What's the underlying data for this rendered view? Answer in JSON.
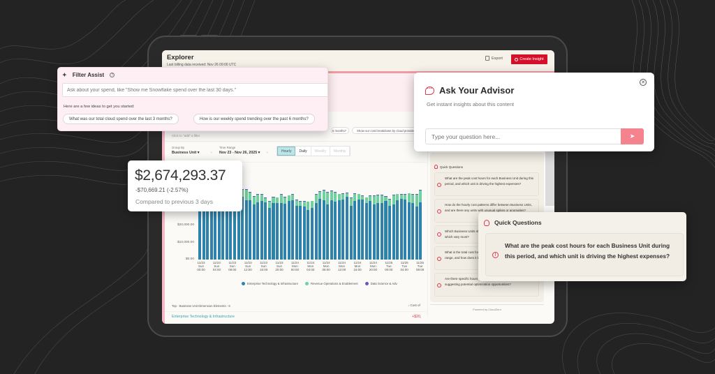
{
  "app": {
    "title": "Explorer",
    "subtitle": "Last billing data received: Nov 26 09:00 UTC",
    "export_label": "Export",
    "create_insight_label": "Create Insight",
    "colors": {
      "accent": "#d4102a",
      "pink": "#fdeff3",
      "teal": "#3ba0b0"
    }
  },
  "filter_assist": {
    "title": "Filter Assist",
    "input_placeholder": "Ask about your spend, like \"Show me Snowflake spend over the last 30 days.\"",
    "ideas_label": "Here are a few ideas to get you started:",
    "suggestions": [
      "What was our total cloud spend over the last 3 months?",
      "How is our weekly spend trending over the past 6 months?",
      "6 months?",
      "Show our cost breakdown by cloud provider"
    ],
    "filter_hint": "Click to \"add\" a filter"
  },
  "controls": {
    "group_by_label": "Group By",
    "group_by_value": "Business Unit",
    "time_range_label": "Time Range",
    "time_range_value": "Nov 23 - Nov 26, 2025",
    "granularity": [
      "Hourly",
      "Daily",
      "Weekly",
      "Monthly"
    ],
    "granularity_selected": "Hourly"
  },
  "summary": {
    "total": "$2,674,293.37",
    "delta": "-$70,669.21 (-2.57%)",
    "comparison": "Compared to previous 3 days"
  },
  "chart_data": {
    "type": "bar",
    "stacked": true,
    "title": "",
    "xlabel": "",
    "ylabel": "",
    "y_ticks": [
      "$0.00",
      "$10,000.00",
      "$20,000.00"
    ],
    "ylim": [
      0,
      31000
    ],
    "x_tick_labels": [
      "11/23 Sun 00:00",
      "11/23 Sun 04:00",
      "11/23 Sun 08:00",
      "11/23 Sun 12:00",
      "11/23 Sun 16:00",
      "11/23 Sun 20:00",
      "11/24 Mon 00:00",
      "11/24 Mon 04:00",
      "11/24 Mon 08:00",
      "11/24 Mon 12:00",
      "11/24 Mon 16:00",
      "11/24 Mon 20:00",
      "11/25 Tue 00:00",
      "11/25 Tue 04:00",
      "11/25 Tue 08:00"
    ],
    "series": [
      {
        "name": "Enterprise Technology & Infrastructure",
        "color": "#2e83ad",
        "values": [
          27800,
          26000,
          26800,
          24000,
          24800,
          26000,
          26500,
          25000,
          24500,
          25200,
          26000,
          27800,
          26500,
          26500,
          24500,
          25500,
          26000,
          25500,
          23000,
          25000,
          25000,
          25200,
          24800,
          26000,
          26500,
          24000,
          24000,
          23500,
          22000,
          23000,
          25000,
          27000,
          26500,
          24500,
          26500,
          25800,
          26500,
          26800,
          28000,
          24000,
          26000,
          26800,
          26800,
          25000,
          26000,
          24500,
          25200,
          25200,
          26000,
          24000,
          24500,
          26500,
          27000,
          26800,
          25500,
          25200,
          23500,
          25500
        ]
      },
      {
        "name": "Revenue Operations & Enablement",
        "color": "#6fd1a0",
        "values": [
          0,
          1800,
          1200,
          3800,
          3000,
          1800,
          1300,
          2800,
          3300,
          2600,
          1800,
          3200,
          4500,
          3300,
          3500,
          3300,
          2800,
          1800,
          2700,
          2600,
          2500,
          3600,
          2800,
          2400,
          2300,
          2400,
          1800,
          2300,
          3600,
          2900,
          3800,
          3200,
          4300,
          5300,
          3800,
          4000,
          2500,
          2400,
          1500,
          3400,
          3300,
          2200,
          1500,
          2500,
          2300,
          3800,
          3400,
          3400,
          2000,
          2800,
          4000,
          2500,
          1900,
          2100,
          3900,
          3600,
          5400,
          5300
        ]
      },
      {
        "name": "Data Science & Advanced Analytics",
        "color": "#6b57b8",
        "values": [
          0,
          200,
          200,
          200,
          200,
          200,
          200,
          200,
          200,
          200,
          200,
          200,
          300,
          300,
          300,
          300,
          300,
          200,
          200,
          200,
          200,
          200,
          200,
          200,
          200,
          200,
          200,
          200,
          200,
          200,
          200,
          300,
          300,
          300,
          300,
          300,
          300,
          300,
          300,
          300,
          300,
          300,
          300,
          200,
          200,
          200,
          200,
          200,
          200,
          200,
          200,
          200,
          200,
          200,
          200,
          200,
          200,
          200
        ]
      }
    ],
    "legend_position": "bottom",
    "grid": false
  },
  "table": {
    "header": "Top - Business Unit Dimension Elements - 6",
    "sort_label": "Cost of",
    "rows": [
      {
        "name": "Enterprise Technology & Infrastructure",
        "value": "+$20,"
      }
    ]
  },
  "advisor_panel": {
    "quick_questions_title": "Quick Questions",
    "questions": [
      "What are the peak cost hours for each Business Unit during this period, and which unit is driving the highest expenses?",
      "How do the hourly cost patterns differ between Business Units, and are there any units with unusual spikes or anomalies?",
      "Which Business Units show the most consistent spending, and which vary most?",
      "What is the total cost for each Business Unit over this time range, and how does it break down?",
      "Are there specific hours when Business Units consistently spike, suggesting potential optimization opportunities?"
    ],
    "powered_by": "Powered by CloudZero"
  },
  "advisor_popup": {
    "title": "Ask Your Advisor",
    "subtitle": "Get instant insights about this content",
    "input_placeholder": "Type your question here...",
    "send_icon": "paper-plane-icon",
    "close_icon": "close-icon"
  },
  "quick_questions_popup": {
    "title": "Quick Questions",
    "question": "What are the peak cost hours for each Business Unit during this period, and which unit is driving the highest expenses?"
  }
}
